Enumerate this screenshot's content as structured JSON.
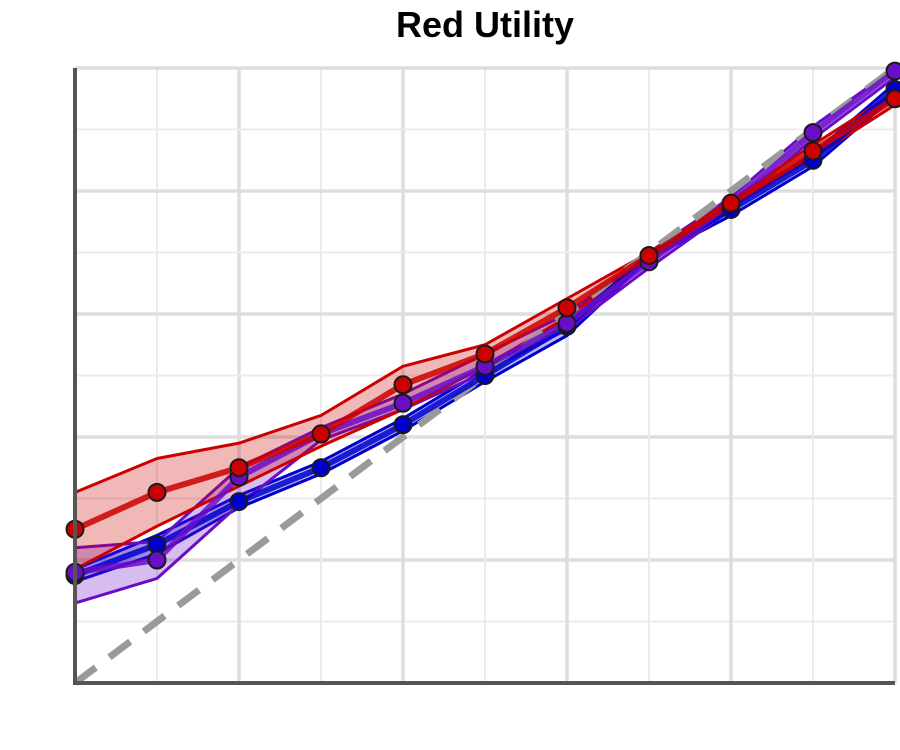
{
  "chart_data": {
    "type": "line",
    "title": "Red Utility",
    "xlabel": "",
    "ylabel": "",
    "x": [
      0.0,
      0.1,
      0.2,
      0.3,
      0.4,
      0.5,
      0.6,
      0.7,
      0.8,
      0.9,
      1.0
    ],
    "xlim": [
      0,
      1
    ],
    "ylim": [
      0,
      1
    ],
    "grid": true,
    "legend": "none",
    "reference_line": {
      "style": "dashed",
      "color": "#9a9a9a",
      "from": [
        0,
        0
      ],
      "to": [
        1,
        1
      ]
    },
    "series": [
      {
        "color": "#0000cc",
        "values": [
          0.175,
          0.225,
          0.295,
          0.35,
          0.42,
          0.5,
          0.58,
          0.695,
          0.77,
          0.85,
          0.965
        ],
        "lower": [
          0.165,
          0.21,
          0.285,
          0.34,
          0.41,
          0.49,
          0.565,
          0.69,
          0.76,
          0.84,
          0.955
        ],
        "upper": [
          0.185,
          0.24,
          0.305,
          0.36,
          0.43,
          0.51,
          0.595,
          0.7,
          0.78,
          0.86,
          0.975
        ]
      },
      {
        "color": "#6a0dc7",
        "values": [
          0.18,
          0.2,
          0.335,
          0.405,
          0.455,
          0.515,
          0.585,
          0.685,
          0.78,
          0.895,
          0.995
        ],
        "lower": [
          0.13,
          0.17,
          0.29,
          0.395,
          0.445,
          0.505,
          0.575,
          0.675,
          0.77,
          0.885,
          0.985
        ],
        "upper": [
          0.22,
          0.23,
          0.35,
          0.415,
          0.47,
          0.535,
          0.6,
          0.7,
          0.79,
          0.905,
          1.0
        ]
      },
      {
        "color": "#cc0000",
        "values": [
          0.25,
          0.31,
          0.35,
          0.405,
          0.485,
          0.535,
          0.61,
          0.695,
          0.78,
          0.865,
          0.95
        ],
        "lower": [
          0.185,
          0.255,
          0.32,
          0.385,
          0.445,
          0.515,
          0.595,
          0.69,
          0.775,
          0.855,
          0.94
        ],
        "upper": [
          0.31,
          0.365,
          0.39,
          0.435,
          0.515,
          0.55,
          0.625,
          0.7,
          0.785,
          0.875,
          0.96
        ]
      }
    ]
  }
}
